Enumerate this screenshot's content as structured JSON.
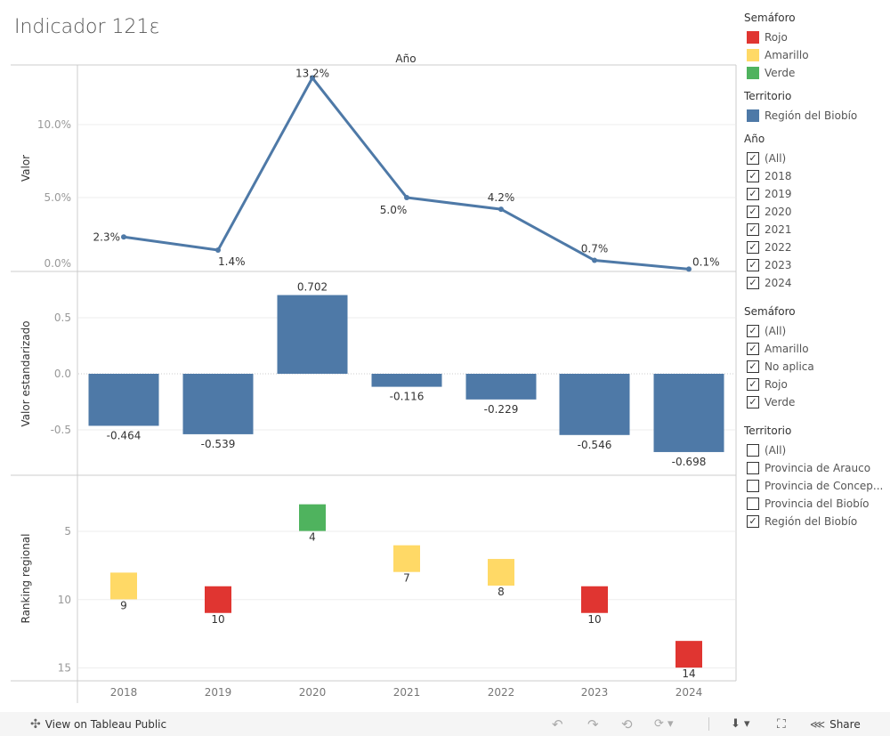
{
  "title": "Indicador 121ε",
  "chart_data": [
    {
      "type": "line",
      "column_header": "Año",
      "ylabel": "Valor",
      "categories": [
        "2018",
        "2019",
        "2020",
        "2021",
        "2022",
        "2023",
        "2024"
      ],
      "values": [
        2.3,
        1.4,
        13.2,
        5.0,
        4.2,
        0.7,
        0.1
      ],
      "value_labels": [
        "2.3%",
        "1.4%",
        "13.2%",
        "5.0%",
        "4.2%",
        "0.7%",
        "0.1%"
      ],
      "yticks": [
        "0.0%",
        "5.0%",
        "10.0%"
      ],
      "ylim": [
        0,
        14
      ],
      "color": "#4e79a7"
    },
    {
      "type": "bar",
      "ylabel": "Valor estandarizado",
      "categories": [
        "2018",
        "2019",
        "2020",
        "2021",
        "2022",
        "2023",
        "2024"
      ],
      "values": [
        -0.464,
        -0.539,
        0.702,
        -0.116,
        -0.229,
        -0.546,
        -0.698
      ],
      "value_labels": [
        "-0.464",
        "-0.539",
        "0.702",
        "-0.116",
        "-0.229",
        "-0.546",
        "-0.698"
      ],
      "yticks": [
        "-0.5",
        "0.0",
        "0.5"
      ],
      "color": "#4e79a7"
    },
    {
      "type": "scatter",
      "ylabel": "Ranking regional",
      "categories": [
        "2018",
        "2019",
        "2020",
        "2021",
        "2022",
        "2023",
        "2024"
      ],
      "values": [
        9,
        10,
        4,
        7,
        8,
        10,
        14
      ],
      "semaforo": [
        "Amarillo",
        "Rojo",
        "Verde",
        "Amarillo",
        "Amarillo",
        "Rojo",
        "Rojo"
      ],
      "yticks": [
        "5",
        "10",
        "15"
      ],
      "reversed": true
    }
  ],
  "legend": {
    "semaforo_title": "Semáforo",
    "semaforo": [
      {
        "label": "Rojo",
        "color": "#e03531"
      },
      {
        "label": "Amarillo",
        "color": "#ffd966"
      },
      {
        "label": "Verde",
        "color": "#4fb35e"
      }
    ],
    "territorio_title": "Territorio",
    "territorio": [
      {
        "label": "Región del Biobío",
        "color": "#4e79a7"
      }
    ]
  },
  "filters": {
    "anio": {
      "title": "Año",
      "items": [
        {
          "label": "(All)",
          "checked": true
        },
        {
          "label": "2018",
          "checked": true
        },
        {
          "label": "2019",
          "checked": true
        },
        {
          "label": "2020",
          "checked": true
        },
        {
          "label": "2021",
          "checked": true
        },
        {
          "label": "2022",
          "checked": true
        },
        {
          "label": "2023",
          "checked": true
        },
        {
          "label": "2024",
          "checked": true
        }
      ]
    },
    "semaforo": {
      "title": "Semáforo",
      "items": [
        {
          "label": "(All)",
          "checked": true
        },
        {
          "label": "Amarillo",
          "checked": true
        },
        {
          "label": "No aplica",
          "checked": true
        },
        {
          "label": "Rojo",
          "checked": true
        },
        {
          "label": "Verde",
          "checked": true
        }
      ]
    },
    "territorio": {
      "title": "Territorio",
      "items": [
        {
          "label": "(All)",
          "checked": false
        },
        {
          "label": "Provincia de Arauco",
          "checked": false
        },
        {
          "label": "Provincia de Concep...",
          "checked": false
        },
        {
          "label": "Provincia del Biobío",
          "checked": false
        },
        {
          "label": "Región del Biobío",
          "checked": true
        }
      ]
    }
  },
  "footer": {
    "view_label": "View on Tableau Public",
    "share_label": "Share"
  }
}
